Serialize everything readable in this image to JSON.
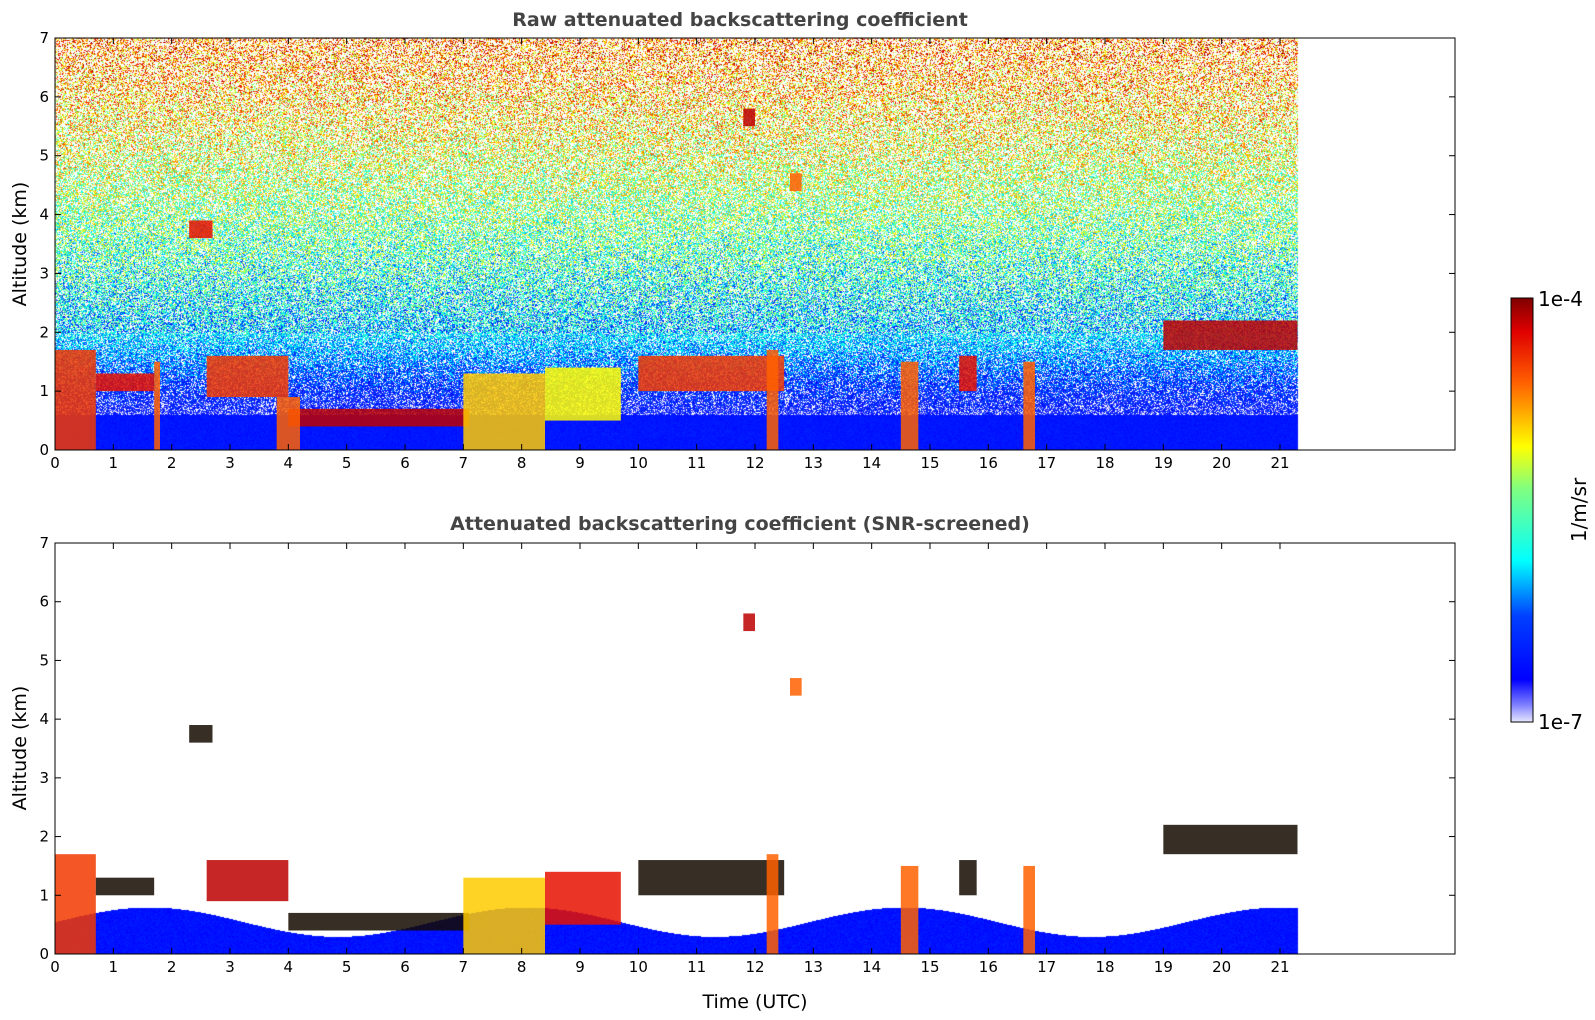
{
  "chart_data": [
    {
      "type": "heatmap",
      "title": "Raw attenuated backscattering coefficient",
      "xlabel": "",
      "ylabel": "Altitude (km)",
      "xlim": [
        0,
        24
      ],
      "ylim": [
        0,
        7
      ],
      "data_xmax": 21.3,
      "xticks": [
        "0",
        "1",
        "2",
        "3",
        "4",
        "5",
        "6",
        "7",
        "8",
        "9",
        "10",
        "11",
        "12",
        "13",
        "14",
        "15",
        "16",
        "17",
        "18",
        "19",
        "20",
        "21"
      ],
      "yticks": [
        "0",
        "1",
        "2",
        "3",
        "4",
        "5",
        "6",
        "7"
      ],
      "mode": "raw",
      "layers": [
        {
          "x0": 0.0,
          "x1": 0.7,
          "y0": 0.0,
          "y1": 1.7,
          "level": 0.85
        },
        {
          "x0": 0.7,
          "x1": 1.7,
          "y0": 1.0,
          "y1": 1.3,
          "level": 0.9
        },
        {
          "x0": 1.7,
          "x1": 1.8,
          "y0": 0.0,
          "y1": 1.5,
          "level": 0.8
        },
        {
          "x0": 2.6,
          "x1": 4.0,
          "y0": 0.9,
          "y1": 1.6,
          "level": 0.85
        },
        {
          "x0": 4.0,
          "x1": 7.1,
          "y0": 0.4,
          "y1": 0.7,
          "level": 0.95
        },
        {
          "x0": 3.8,
          "x1": 4.2,
          "y0": 0.0,
          "y1": 0.9,
          "level": 0.8
        },
        {
          "x0": 7.0,
          "x1": 8.4,
          "y0": 0.0,
          "y1": 1.3,
          "level": 0.7
        },
        {
          "x0": 8.4,
          "x1": 9.7,
          "y0": 0.5,
          "y1": 1.4,
          "level": 0.65
        },
        {
          "x0": 10.0,
          "x1": 12.5,
          "y0": 1.0,
          "y1": 1.6,
          "level": 0.85
        },
        {
          "x0": 12.2,
          "x1": 12.4,
          "y0": 0.0,
          "y1": 1.7,
          "level": 0.8
        },
        {
          "x0": 14.5,
          "x1": 14.8,
          "y0": 0.0,
          "y1": 1.5,
          "level": 0.8
        },
        {
          "x0": 15.5,
          "x1": 15.8,
          "y0": 1.0,
          "y1": 1.6,
          "level": 0.9
        },
        {
          "x0": 16.6,
          "x1": 16.8,
          "y0": 0.0,
          "y1": 1.5,
          "level": 0.8
        },
        {
          "x0": 19.0,
          "x1": 21.3,
          "y0": 1.7,
          "y1": 2.2,
          "level": 0.95
        },
        {
          "x0": 2.3,
          "x1": 2.7,
          "y0": 3.6,
          "y1": 3.9,
          "level": 0.9
        },
        {
          "x0": 11.8,
          "x1": 12.0,
          "y0": 5.5,
          "y1": 5.8,
          "level": 0.95
        },
        {
          "x0": 12.6,
          "x1": 12.8,
          "y0": 4.4,
          "y1": 4.7,
          "level": 0.8
        }
      ]
    },
    {
      "type": "heatmap",
      "title": "Attenuated backscattering coefficient (SNR-screened)",
      "xlabel": "Time (UTC)",
      "ylabel": "Altitude (km)",
      "xlim": [
        0,
        24
      ],
      "ylim": [
        0,
        7
      ],
      "data_xmax": 21.3,
      "xticks": [
        "0",
        "1",
        "2",
        "3",
        "4",
        "5",
        "6",
        "7",
        "8",
        "9",
        "10",
        "11",
        "12",
        "13",
        "14",
        "15",
        "16",
        "17",
        "18",
        "19",
        "20",
        "21"
      ],
      "yticks": [
        "0",
        "1",
        "2",
        "3",
        "4",
        "5",
        "6",
        "7"
      ],
      "mode": "screened",
      "layers": [
        {
          "x0": 0.0,
          "x1": 0.7,
          "y0": 0.0,
          "y1": 1.7,
          "level": 0.85
        },
        {
          "x0": 0.7,
          "x1": 1.7,
          "y0": 1.0,
          "y1": 1.3,
          "level": 1.0
        },
        {
          "x0": 2.6,
          "x1": 4.0,
          "y0": 0.9,
          "y1": 1.6,
          "level": 0.95
        },
        {
          "x0": 4.0,
          "x1": 7.1,
          "y0": 0.4,
          "y1": 0.7,
          "level": 1.0
        },
        {
          "x0": 7.0,
          "x1": 8.4,
          "y0": 0.0,
          "y1": 1.3,
          "level": 0.7
        },
        {
          "x0": 8.4,
          "x1": 9.7,
          "y0": 0.5,
          "y1": 1.4,
          "level": 0.9
        },
        {
          "x0": 10.0,
          "x1": 12.5,
          "y0": 1.0,
          "y1": 1.6,
          "level": 1.0
        },
        {
          "x0": 12.2,
          "x1": 12.4,
          "y0": 0.0,
          "y1": 1.7,
          "level": 0.8
        },
        {
          "x0": 14.5,
          "x1": 14.8,
          "y0": 0.0,
          "y1": 1.5,
          "level": 0.8
        },
        {
          "x0": 15.5,
          "x1": 15.8,
          "y0": 1.0,
          "y1": 1.6,
          "level": 1.0
        },
        {
          "x0": 16.6,
          "x1": 16.8,
          "y0": 0.0,
          "y1": 1.5,
          "level": 0.8
        },
        {
          "x0": 19.0,
          "x1": 21.3,
          "y0": 1.7,
          "y1": 2.2,
          "level": 1.0
        },
        {
          "x0": 2.3,
          "x1": 2.7,
          "y0": 3.6,
          "y1": 3.9,
          "level": 1.0
        },
        {
          "x0": 11.8,
          "x1": 12.0,
          "y0": 5.5,
          "y1": 5.8,
          "level": 0.95
        },
        {
          "x0": 12.6,
          "x1": 12.8,
          "y0": 4.4,
          "y1": 4.7,
          "level": 0.8
        }
      ]
    }
  ],
  "colorbar": {
    "label": "1/m/sr",
    "max_label": "1e-4",
    "min_label": "1e-7",
    "colormap": "jet",
    "min_value": 1e-07,
    "max_value": 0.0001,
    "scale": "log"
  },
  "colors": {
    "title": "#444444",
    "jet_stops": [
      "#e8e8ff",
      "#0000ff",
      "#00ffff",
      "#ffff00",
      "#ff0000",
      "#800000"
    ]
  }
}
